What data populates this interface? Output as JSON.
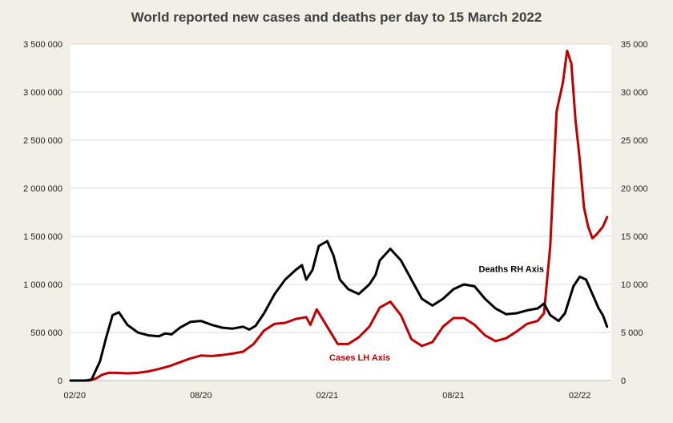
{
  "chart_data": {
    "type": "line",
    "title": "World reported new cases and deaths per day to 15 March 2022",
    "x_unit": "month (0 = Jan 2020)",
    "xlim": [
      0.8,
      26.5
    ],
    "x_ticks": [
      {
        "x": 1,
        "label": "02/20"
      },
      {
        "x": 7,
        "label": "08/20"
      },
      {
        "x": 13,
        "label": "02/21"
      },
      {
        "x": 19,
        "label": "08/21"
      },
      {
        "x": 25,
        "label": "02/22"
      }
    ],
    "y_left": {
      "min": 0,
      "max": 3500000,
      "ticks": [
        0,
        500000,
        1000000,
        1500000,
        2000000,
        2500000,
        3000000,
        3500000
      ],
      "tick_labels": [
        "0",
        "500 000",
        "1 000 000",
        "1 500 000",
        "2 000 000",
        "2 500 000",
        "3 000 000",
        "3 500 000"
      ]
    },
    "y_right": {
      "min": 0,
      "max": 35000,
      "ticks": [
        0,
        5000,
        10000,
        15000,
        20000,
        25000,
        30000,
        35000
      ],
      "tick_labels": [
        "0",
        "5 000",
        "10 000",
        "15 000",
        "20 000",
        "25 000",
        "30 000",
        "35 000"
      ]
    },
    "grid": true,
    "series": [
      {
        "name": "Cases LH Axis",
        "axis": "left",
        "color": "#c00000",
        "points": [
          [
            0.8,
            0
          ],
          [
            1.7,
            0
          ],
          [
            2.0,
            20000
          ],
          [
            2.3,
            60000
          ],
          [
            2.6,
            80000
          ],
          [
            3.0,
            80000
          ],
          [
            3.5,
            75000
          ],
          [
            4.0,
            80000
          ],
          [
            4.5,
            95000
          ],
          [
            5.0,
            120000
          ],
          [
            5.5,
            150000
          ],
          [
            6.0,
            190000
          ],
          [
            6.5,
            230000
          ],
          [
            7.0,
            260000
          ],
          [
            7.5,
            255000
          ],
          [
            8.0,
            265000
          ],
          [
            8.5,
            280000
          ],
          [
            9.0,
            300000
          ],
          [
            9.5,
            380000
          ],
          [
            10.0,
            520000
          ],
          [
            10.5,
            590000
          ],
          [
            11.0,
            600000
          ],
          [
            11.5,
            640000
          ],
          [
            12.0,
            660000
          ],
          [
            12.2,
            580000
          ],
          [
            12.5,
            740000
          ],
          [
            13.0,
            560000
          ],
          [
            13.5,
            380000
          ],
          [
            14.0,
            380000
          ],
          [
            14.5,
            450000
          ],
          [
            15.0,
            560000
          ],
          [
            15.5,
            760000
          ],
          [
            16.0,
            820000
          ],
          [
            16.5,
            680000
          ],
          [
            17.0,
            430000
          ],
          [
            17.5,
            360000
          ],
          [
            18.0,
            400000
          ],
          [
            18.5,
            560000
          ],
          [
            19.0,
            650000
          ],
          [
            19.5,
            650000
          ],
          [
            20.0,
            580000
          ],
          [
            20.5,
            470000
          ],
          [
            21.0,
            410000
          ],
          [
            21.5,
            440000
          ],
          [
            22.0,
            510000
          ],
          [
            22.5,
            590000
          ],
          [
            23.0,
            620000
          ],
          [
            23.3,
            700000
          ],
          [
            23.6,
            1400000
          ],
          [
            23.9,
            2800000
          ],
          [
            24.2,
            3100000
          ],
          [
            24.4,
            3430000
          ],
          [
            24.6,
            3300000
          ],
          [
            24.8,
            2700000
          ],
          [
            25.0,
            2300000
          ],
          [
            25.2,
            1800000
          ],
          [
            25.4,
            1600000
          ],
          [
            25.6,
            1480000
          ],
          [
            25.8,
            1520000
          ],
          [
            26.1,
            1600000
          ],
          [
            26.3,
            1700000
          ]
        ]
      },
      {
        "name": "Deaths RH Axis",
        "axis": "right",
        "color": "#000000",
        "points": [
          [
            0.8,
            0
          ],
          [
            1.5,
            0
          ],
          [
            1.8,
            100
          ],
          [
            2.2,
            2000
          ],
          [
            2.5,
            4500
          ],
          [
            2.8,
            6800
          ],
          [
            3.1,
            7100
          ],
          [
            3.5,
            5800
          ],
          [
            4.0,
            5000
          ],
          [
            4.5,
            4700
          ],
          [
            5.0,
            4600
          ],
          [
            5.3,
            4900
          ],
          [
            5.6,
            4800
          ],
          [
            6.0,
            5500
          ],
          [
            6.5,
            6100
          ],
          [
            7.0,
            6200
          ],
          [
            7.5,
            5800
          ],
          [
            8.0,
            5500
          ],
          [
            8.5,
            5400
          ],
          [
            9.0,
            5600
          ],
          [
            9.3,
            5300
          ],
          [
            9.6,
            5700
          ],
          [
            10.0,
            7000
          ],
          [
            10.5,
            9000
          ],
          [
            11.0,
            10500
          ],
          [
            11.5,
            11500
          ],
          [
            11.8,
            12000
          ],
          [
            12.0,
            10500
          ],
          [
            12.3,
            11500
          ],
          [
            12.6,
            14000
          ],
          [
            13.0,
            14500
          ],
          [
            13.3,
            13000
          ],
          [
            13.6,
            10500
          ],
          [
            14.0,
            9500
          ],
          [
            14.5,
            9000
          ],
          [
            15.0,
            10000
          ],
          [
            15.3,
            11000
          ],
          [
            15.5,
            12500
          ],
          [
            16.0,
            13700
          ],
          [
            16.5,
            12500
          ],
          [
            17.0,
            10500
          ],
          [
            17.5,
            8500
          ],
          [
            18.0,
            7800
          ],
          [
            18.5,
            8500
          ],
          [
            19.0,
            9500
          ],
          [
            19.5,
            10000
          ],
          [
            20.0,
            9800
          ],
          [
            20.5,
            8500
          ],
          [
            21.0,
            7500
          ],
          [
            21.5,
            6900
          ],
          [
            22.0,
            7000
          ],
          [
            22.5,
            7300
          ],
          [
            23.0,
            7500
          ],
          [
            23.3,
            8000
          ],
          [
            23.6,
            6800
          ],
          [
            24.0,
            6200
          ],
          [
            24.3,
            7000
          ],
          [
            24.7,
            9800
          ],
          [
            25.0,
            10800
          ],
          [
            25.3,
            10500
          ],
          [
            25.6,
            9000
          ],
          [
            25.9,
            7500
          ],
          [
            26.1,
            6800
          ],
          [
            26.3,
            5600
          ]
        ]
      }
    ],
    "annotations": [
      {
        "text": "Deaths RH Axis",
        "x": 20.2,
        "y_right": 11300,
        "color": "#000000"
      },
      {
        "text": "Cases LH Axis",
        "x": 13.1,
        "y_left": 210000,
        "color": "#c00000"
      }
    ]
  }
}
